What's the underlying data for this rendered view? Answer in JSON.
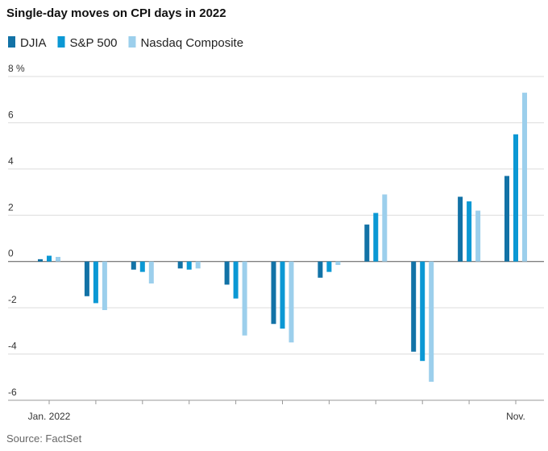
{
  "chart_data": {
    "type": "bar",
    "title": "Single-day moves on CPI days in 2022",
    "categories": [
      "Jan. 2022",
      null,
      null,
      null,
      null,
      null,
      null,
      null,
      null,
      null,
      "Nov."
    ],
    "series": [
      {
        "name": "DJIA",
        "color": "#1272a6",
        "values": [
          0.1,
          -1.5,
          -0.35,
          -0.3,
          -1.0,
          -2.7,
          -0.7,
          1.6,
          -3.9,
          2.8,
          3.7
        ]
      },
      {
        "name": "S&P 500",
        "color": "#0b98d4",
        "values": [
          0.25,
          -1.8,
          -0.45,
          -0.35,
          -1.6,
          -2.9,
          -0.45,
          2.1,
          -4.3,
          2.6,
          5.5
        ]
      },
      {
        "name": "Nasdaq Composite",
        "color": "#9ccfec",
        "values": [
          0.2,
          -2.1,
          -0.95,
          -0.3,
          -3.2,
          -3.5,
          -0.15,
          2.9,
          -5.2,
          2.2,
          7.3
        ]
      }
    ],
    "ylim": [
      -6,
      8
    ],
    "yticks": [
      -6,
      -4,
      -2,
      0,
      2,
      4,
      6,
      {
        "value": 8,
        "label": "8 %"
      }
    ],
    "grid": true,
    "source": "Source: FactSet"
  }
}
